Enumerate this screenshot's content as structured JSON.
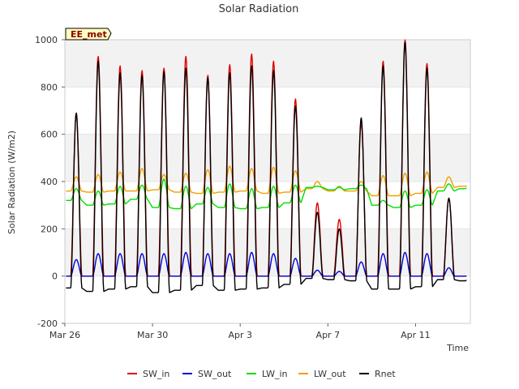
{
  "chart_data": {
    "type": "line",
    "title": "Solar Radiation",
    "xlabel": "Time",
    "ylabel": "Solar Radiation (W/m2)",
    "site_label": "EE_met",
    "ylim": [
      -200,
      1000
    ],
    "yticks": [
      -200,
      0,
      200,
      400,
      600,
      800,
      1000
    ],
    "x_start": "2024-03-26",
    "x_end": "2024-04-13 12:00",
    "xticks": [
      {
        "date": "2024-03-26",
        "label": "Mar 26"
      },
      {
        "date": "2024-03-30",
        "label": "Mar 30"
      },
      {
        "date": "2024-04-03",
        "label": "Apr 3"
      },
      {
        "date": "2024-04-07",
        "label": "Apr 7"
      },
      {
        "date": "2024-04-11",
        "label": "Apr 11"
      }
    ],
    "grid": true,
    "legend_position": "bottom",
    "days": [
      "Mar 26",
      "Mar 27",
      "Mar 28",
      "Mar 29",
      "Mar 30",
      "Mar 31",
      "Apr 1",
      "Apr 2",
      "Apr 3",
      "Apr 4",
      "Apr 5",
      "Apr 6",
      "Apr 7",
      "Apr 8",
      "Apr 9",
      "Apr 10",
      "Apr 11",
      "Apr 12",
      "Apr 13"
    ],
    "series": [
      {
        "name": "SW_in",
        "color": "#e00000",
        "daily_peak": [
          690,
          930,
          890,
          870,
          880,
          930,
          850,
          895,
          940,
          910,
          750,
          310,
          240,
          650,
          910,
          1000,
          900,
          330,
          0
        ],
        "night_value": 0
      },
      {
        "name": "SW_out",
        "color": "#0000dd",
        "daily_peak": [
          70,
          95,
          95,
          95,
          95,
          100,
          95,
          95,
          100,
          95,
          75,
          25,
          20,
          60,
          95,
          100,
          95,
          35,
          0
        ],
        "night_value": 0
      },
      {
        "name": "LW_in",
        "color": "#00dd00",
        "daily_peak": [
          370,
          360,
          380,
          385,
          410,
          380,
          375,
          390,
          370,
          380,
          385,
          380,
          375,
          385,
          320,
          360,
          365,
          390,
          390
        ],
        "night_value": [
          320,
          300,
          305,
          325,
          290,
          285,
          305,
          290,
          285,
          290,
          310,
          375,
          365,
          370,
          300,
          290,
          300,
          360,
          370
        ]
      },
      {
        "name": "LW_out",
        "color": "#f0a000",
        "daily_peak": [
          420,
          430,
          440,
          455,
          430,
          435,
          450,
          465,
          455,
          460,
          445,
          400,
          380,
          400,
          425,
          435,
          440,
          420,
          400
        ],
        "night_value": [
          360,
          355,
          360,
          360,
          365,
          355,
          350,
          355,
          360,
          350,
          355,
          370,
          360,
          360,
          340,
          340,
          350,
          375,
          380
        ]
      },
      {
        "name": "Rnet",
        "color": "#000000",
        "daily_peak": [
          690,
          910,
          860,
          850,
          865,
          880,
          840,
          860,
          890,
          870,
          720,
          270,
          200,
          670,
          890,
          990,
          880,
          330,
          0
        ],
        "night_value": [
          -50,
          -65,
          -55,
          -45,
          -70,
          -60,
          -40,
          -60,
          -55,
          -50,
          -35,
          -10,
          -15,
          -20,
          -55,
          -55,
          -45,
          -15,
          -20
        ]
      }
    ]
  }
}
